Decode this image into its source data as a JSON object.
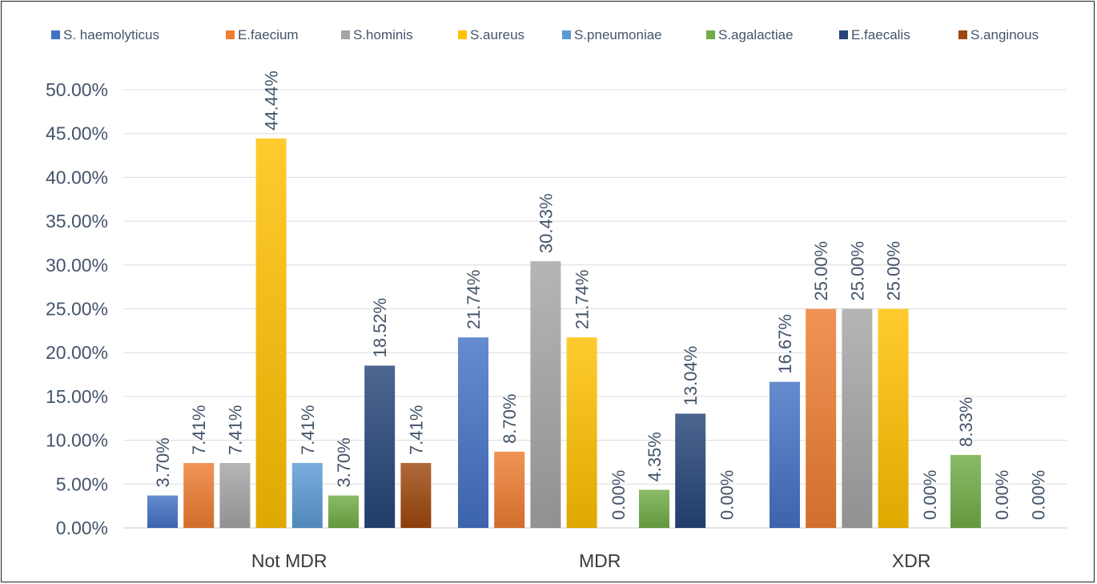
{
  "chart_data": {
    "type": "bar",
    "title": "",
    "xlabel": "",
    "ylabel": "",
    "ylim": [
      0,
      50
    ],
    "y_ticks": [
      "0.00%",
      "5.00%",
      "10.00%",
      "15.00%",
      "20.00%",
      "25.00%",
      "30.00%",
      "35.00%",
      "40.00%",
      "45.00%",
      "50.00%"
    ],
    "y_tick_values": [
      0,
      5,
      10,
      15,
      20,
      25,
      30,
      35,
      40,
      45,
      50
    ],
    "grid": true,
    "legend_position": "top",
    "categories": [
      "Not MDR",
      "MDR",
      "XDR"
    ],
    "series": [
      {
        "name": "S. haemolyticus",
        "color": "#4472C4",
        "values": [
          3.7,
          21.74,
          16.67
        ],
        "labels": [
          "3.70%",
          "21.74%",
          "16.67%"
        ]
      },
      {
        "name": "E.faecium",
        "color": "#ED7D31",
        "values": [
          7.41,
          8.7,
          25.0
        ],
        "labels": [
          "7.41%",
          "8.70%",
          "25.00%"
        ]
      },
      {
        "name": "S.hominis",
        "color": "#A5A5A5",
        "values": [
          7.41,
          30.43,
          25.0
        ],
        "labels": [
          "7.41%",
          "30.43%",
          "25.00%"
        ]
      },
      {
        "name": "S.aureus",
        "color": "#FFC000",
        "values": [
          44.44,
          21.74,
          25.0
        ],
        "labels": [
          "44.44%",
          "21.74%",
          "25.00%"
        ]
      },
      {
        "name": "S.pneumoniae",
        "color": "#5B9BD5",
        "values": [
          7.41,
          0.0,
          0.0
        ],
        "labels": [
          "7.41%",
          "0.00%",
          "0.00%"
        ]
      },
      {
        "name": "S.agalactiae",
        "color": "#70AD47",
        "values": [
          3.7,
          4.35,
          8.33
        ],
        "labels": [
          "3.70%",
          "4.35%",
          "8.33%"
        ]
      },
      {
        "name": "E.faecalis",
        "color": "#264478",
        "values": [
          18.52,
          13.04,
          0.0
        ],
        "labels": [
          "18.52%",
          "13.04%",
          "0.00%"
        ]
      },
      {
        "name": "S.anginous",
        "color": "#9E480E",
        "values": [
          7.41,
          0.0,
          0.0
        ],
        "labels": [
          "7.41%",
          "0.00%",
          "0.00%"
        ]
      }
    ]
  }
}
